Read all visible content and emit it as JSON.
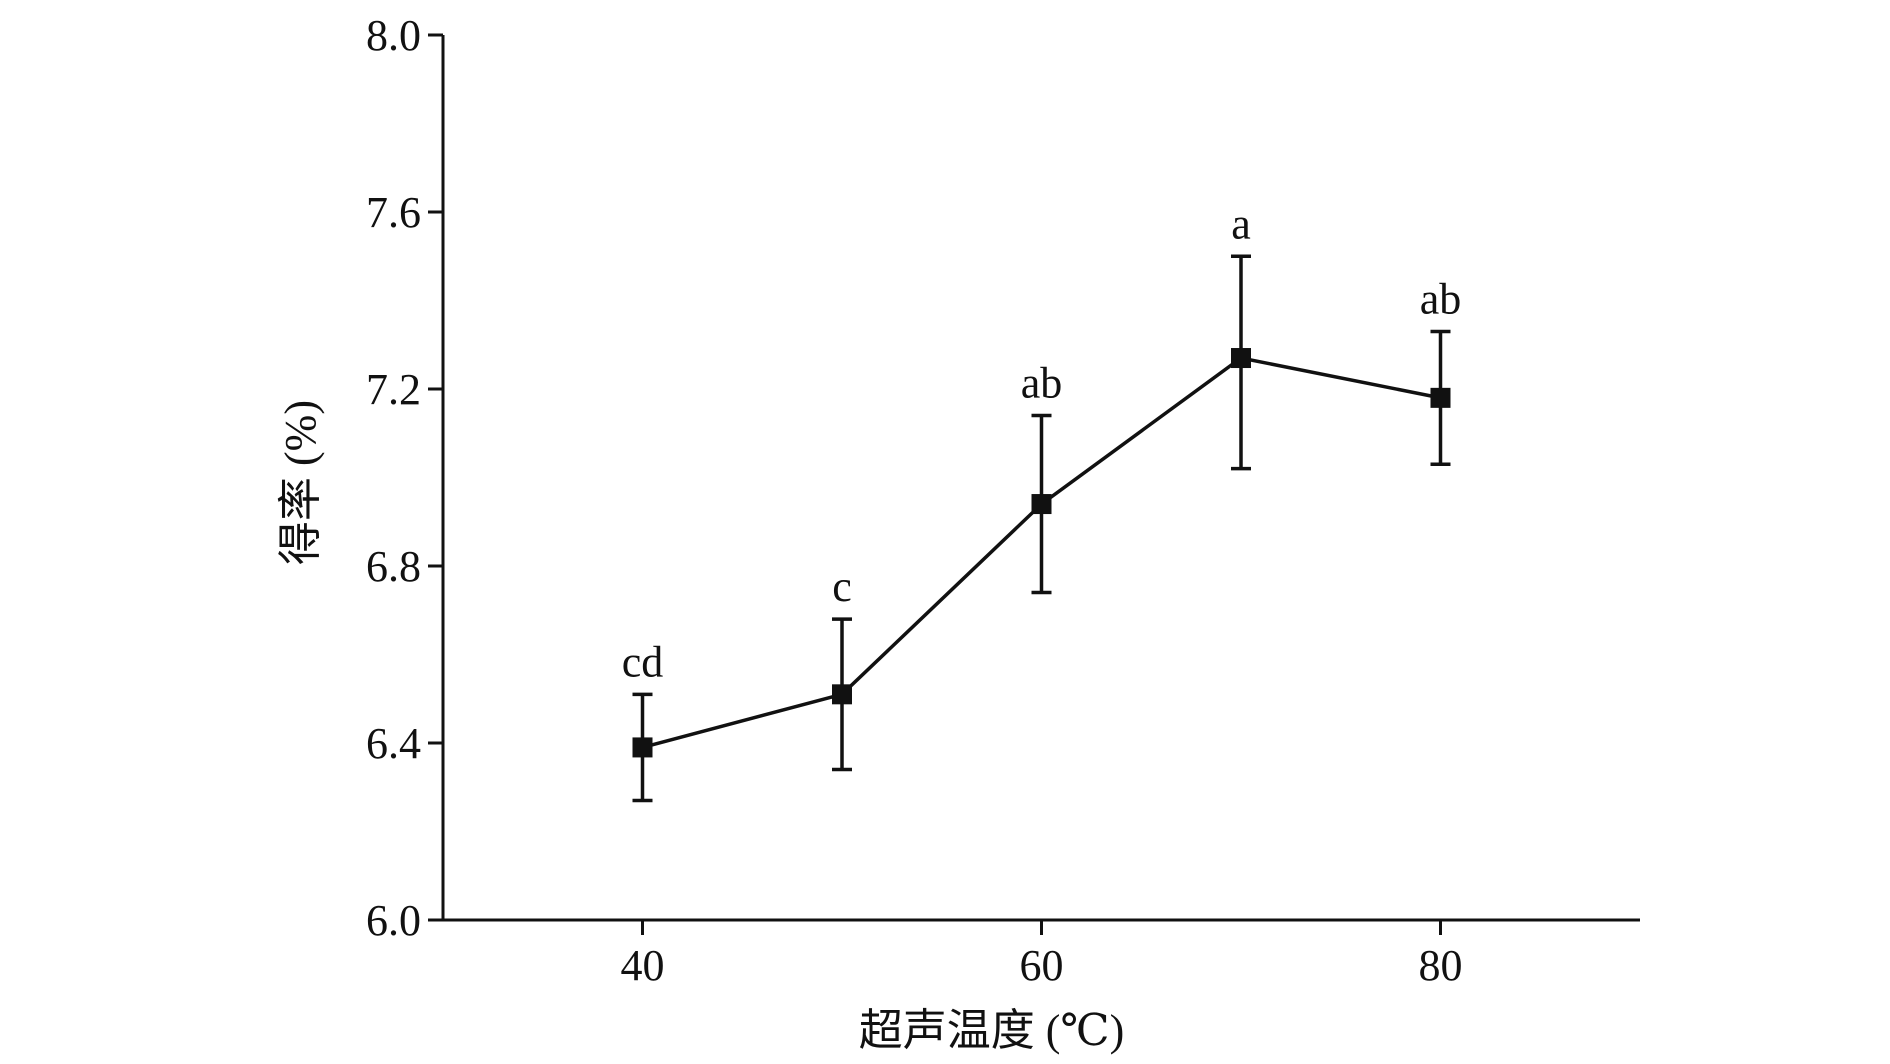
{
  "chart_data": {
    "type": "line",
    "xlabel": "超声温度 (℃)",
    "ylabel": "得率 (%)",
    "xlim": [
      30,
      90
    ],
    "ylim": [
      6.0,
      8.0
    ],
    "xticks": [
      40,
      60,
      80
    ],
    "yticks": [
      6.0,
      6.4,
      6.8,
      7.2,
      7.6,
      8.0
    ],
    "ytick_labels": [
      "6.0",
      "6.4",
      "6.8",
      "7.2",
      "7.6",
      "8.0"
    ],
    "grid": false,
    "marker": "square",
    "color": "#111111",
    "points": [
      {
        "x": 40,
        "y": 6.39,
        "err_low": 6.27,
        "err_high": 6.51,
        "label": "cd"
      },
      {
        "x": 50,
        "y": 6.51,
        "err_low": 6.34,
        "err_high": 6.68,
        "label": "c"
      },
      {
        "x": 60,
        "y": 6.94,
        "err_low": 6.74,
        "err_high": 7.14,
        "label": "ab"
      },
      {
        "x": 70,
        "y": 7.27,
        "err_low": 7.02,
        "err_high": 7.5,
        "label": "a"
      },
      {
        "x": 80,
        "y": 7.18,
        "err_low": 7.03,
        "err_high": 7.33,
        "label": "ab"
      }
    ]
  }
}
